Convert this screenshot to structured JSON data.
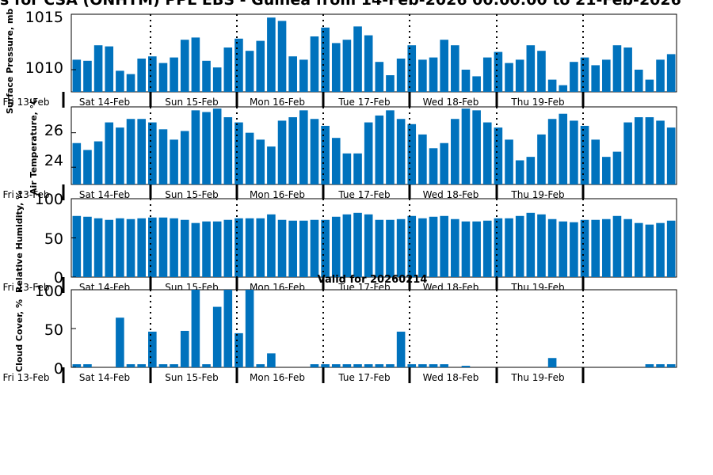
{
  "page": {
    "title": "s for CSA (ONHTM) PPL EBS  - Guinea from 14-Feb-2026 00:00:00 to 21-Feb-2026",
    "valid_label": "Valid for 20260214",
    "bar_color": "#0072bd"
  },
  "chart_data": [
    {
      "type": "bar",
      "name": "pressure",
      "ylabel": "Surface Pressure, mb",
      "ylim": [
        1008,
        1015
      ],
      "yticks": [
        1010,
        1015
      ],
      "day_labels": [
        "Fri 13-Feb",
        "Sat 14-Feb",
        "Sun 15-Feb",
        "Mon 16-Feb",
        "Tue 17-Feb",
        "Wed 18-Feb",
        "Thu 19-Feb"
      ],
      "values": [
        1010.9,
        1010.8,
        1012.2,
        1012.1,
        1009.9,
        1009.6,
        1011.0,
        1011.2,
        1010.6,
        1011.1,
        1012.7,
        1012.9,
        1010.8,
        1010.2,
        1012.0,
        1012.8,
        1011.7,
        1012.6,
        1014.7,
        1014.4,
        1011.2,
        1010.9,
        1013.0,
        1013.8,
        1012.4,
        1012.7,
        1013.9,
        1013.1,
        1010.7,
        1009.5,
        1011.0,
        1012.2,
        1010.9,
        1011.1,
        1012.7,
        1012.2,
        1010.0,
        1009.4,
        1011.1,
        1011.6,
        1010.6,
        1010.9,
        1012.2,
        1011.7,
        1009.1,
        1008.6,
        1010.7,
        1011.1,
        1010.4,
        1010.9,
        1012.2,
        1012.0,
        1010.0,
        1009.1,
        1010.9,
        1011.4
      ]
    },
    {
      "type": "bar",
      "name": "temperature",
      "ylabel": "Air Temperature, °C",
      "ylim": [
        23,
        27.5
      ],
      "yticks": [
        24,
        26
      ],
      "day_labels": [
        "Fri 13-Feb",
        "Sat 14-Feb",
        "Sun 15-Feb",
        "Mon 16-Feb",
        "Tue 17-Feb",
        "Wed 18-Feb",
        "Thu 19-Feb"
      ],
      "values": [
        25.4,
        25.0,
        25.5,
        26.6,
        26.3,
        26.8,
        26.8,
        26.6,
        26.2,
        25.6,
        26.1,
        27.3,
        27.2,
        27.4,
        26.9,
        26.6,
        26.0,
        25.6,
        25.2,
        26.7,
        26.9,
        27.3,
        26.8,
        26.4,
        25.7,
        24.8,
        24.8,
        26.6,
        27.0,
        27.3,
        26.8,
        26.5,
        25.9,
        25.1,
        25.4,
        26.8,
        27.4,
        27.3,
        26.6,
        26.3,
        25.6,
        24.4,
        24.6,
        25.9,
        26.8,
        27.1,
        26.7,
        26.4,
        25.6,
        24.6,
        24.9,
        26.6,
        26.9,
        26.9,
        26.7,
        26.3
      ]
    },
    {
      "type": "bar",
      "name": "humidity",
      "ylabel": "Relative Humidity, %",
      "ylim": [
        0,
        100
      ],
      "yticks": [
        0,
        50,
        100
      ],
      "day_labels": [
        "Fri 13-Feb",
        "Sat 14-Feb",
        "Sun 15-Feb",
        "Mon 16-Feb",
        "Tue 17-Feb",
        "Wed 18-Feb",
        "Thu 19-Feb"
      ],
      "values": [
        78,
        77,
        75,
        73,
        75,
        74,
        75,
        76,
        76,
        75,
        73,
        69,
        71,
        71,
        73,
        75,
        75,
        75,
        80,
        73,
        72,
        72,
        73,
        73,
        77,
        80,
        82,
        80,
        73,
        73,
        74,
        78,
        75,
        77,
        78,
        74,
        71,
        71,
        72,
        75,
        75,
        78,
        82,
        80,
        74,
        71,
        70,
        73,
        73,
        74,
        78,
        74,
        69,
        67,
        69,
        72
      ]
    },
    {
      "type": "bar",
      "name": "cloud",
      "ylabel": "Cloud Cover, %",
      "ylim": [
        0,
        100
      ],
      "yticks": [
        0,
        50,
        100
      ],
      "day_labels": [
        "Fri 13-Feb",
        "Sat 14-Feb",
        "Sun 15-Feb",
        "Mon 16-Feb",
        "Tue 17-Feb",
        "Wed 18-Feb",
        "Thu 19-Feb"
      ],
      "values": [
        4,
        4,
        0,
        0,
        64,
        4,
        4,
        46,
        4,
        4,
        47,
        100,
        4,
        78,
        100,
        44,
        100,
        4,
        18,
        0,
        0,
        0,
        4,
        4,
        4,
        4,
        4,
        4,
        4,
        4,
        46,
        4,
        4,
        4,
        4,
        0,
        2,
        0,
        0,
        0,
        0,
        0,
        0,
        0,
        12,
        0,
        0,
        0,
        0,
        0,
        0,
        0,
        0,
        4,
        4,
        4
      ]
    }
  ]
}
